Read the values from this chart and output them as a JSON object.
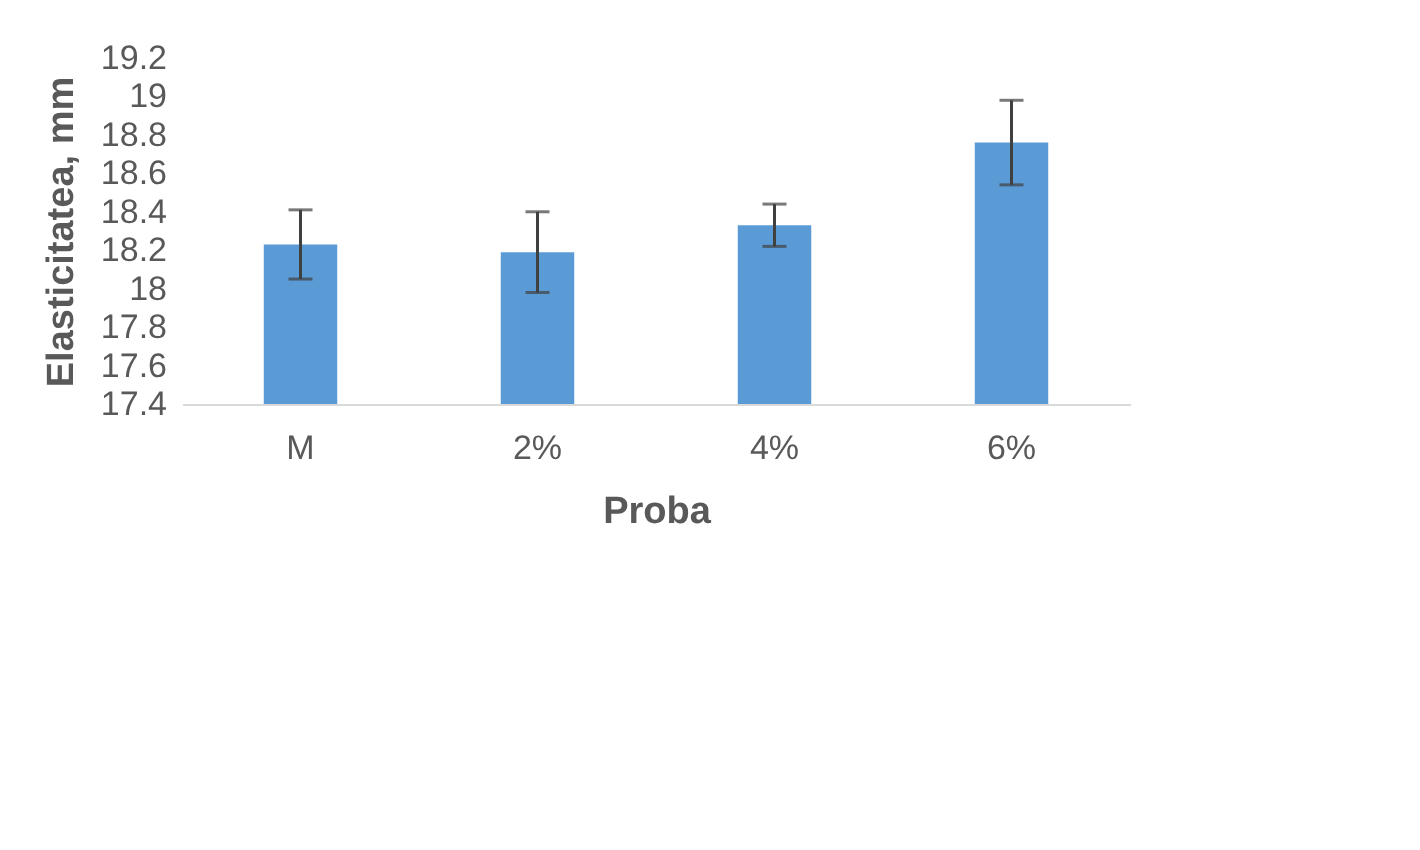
{
  "chart_data": {
    "type": "bar",
    "xlabel": "Proba",
    "ylabel": "Elasticitatea, mm",
    "categories": [
      "M",
      "2%",
      "4%",
      "6%"
    ],
    "values": [
      18.23,
      18.19,
      18.33,
      18.76
    ],
    "errors": [
      0.18,
      0.21,
      0.11,
      0.22
    ],
    "color": "#5b9bd5",
    "ylim": [
      17.4,
      19.2
    ],
    "yticks": [
      17.4,
      17.6,
      17.8,
      18,
      18.2,
      18.4,
      18.6,
      18.8,
      19,
      19.2
    ],
    "grid": false
  }
}
